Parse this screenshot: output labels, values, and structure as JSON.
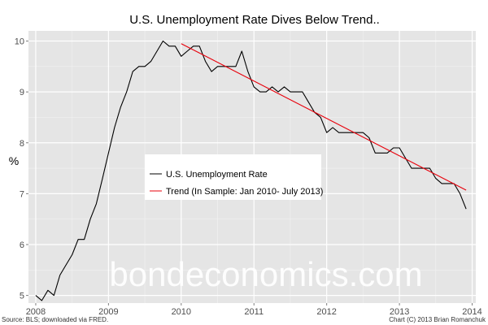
{
  "chart_data": {
    "type": "line",
    "title": "U.S. Unemployment Rate Dives Below Trend..",
    "xlabel": "",
    "ylabel": "%",
    "xlim": [
      2007.9,
      2014.05
    ],
    "ylim": [
      4.85,
      10.2
    ],
    "x_ticks": [
      2008,
      2009,
      2010,
      2011,
      2012,
      2013,
      2014
    ],
    "x_tick_labels": [
      "2008",
      "2009",
      "2010",
      "2011",
      "2012",
      "2013",
      "2014"
    ],
    "y_ticks": [
      5,
      6,
      7,
      8,
      9,
      10
    ],
    "y_tick_labels": [
      "5",
      "6",
      "7",
      "8",
      "9",
      "10"
    ],
    "grid": true,
    "legend_position": "center-left",
    "series": [
      {
        "name": "U.S. Unemployment Rate",
        "color": "#000000",
        "x": [
          2008.0,
          2008.083,
          2008.167,
          2008.25,
          2008.333,
          2008.417,
          2008.5,
          2008.583,
          2008.667,
          2008.75,
          2008.833,
          2008.917,
          2009.0,
          2009.083,
          2009.167,
          2009.25,
          2009.333,
          2009.417,
          2009.5,
          2009.583,
          2009.667,
          2009.75,
          2009.833,
          2009.917,
          2010.0,
          2010.083,
          2010.167,
          2010.25,
          2010.333,
          2010.417,
          2010.5,
          2010.583,
          2010.667,
          2010.75,
          2010.833,
          2010.917,
          2011.0,
          2011.083,
          2011.167,
          2011.25,
          2011.333,
          2011.417,
          2011.5,
          2011.583,
          2011.667,
          2011.75,
          2011.833,
          2011.917,
          2012.0,
          2012.083,
          2012.167,
          2012.25,
          2012.333,
          2012.417,
          2012.5,
          2012.583,
          2012.667,
          2012.75,
          2012.833,
          2012.917,
          2013.0,
          2013.083,
          2013.167,
          2013.25,
          2013.333,
          2013.417,
          2013.5,
          2013.583,
          2013.667,
          2013.75,
          2013.833,
          2013.917
        ],
        "values": [
          5.0,
          4.9,
          5.1,
          5.0,
          5.4,
          5.6,
          5.8,
          6.1,
          6.1,
          6.5,
          6.8,
          7.3,
          7.8,
          8.3,
          8.7,
          9.0,
          9.4,
          9.5,
          9.5,
          9.6,
          9.8,
          10.0,
          9.9,
          9.9,
          9.7,
          9.8,
          9.9,
          9.9,
          9.6,
          9.4,
          9.5,
          9.5,
          9.5,
          9.5,
          9.8,
          9.4,
          9.1,
          9.0,
          9.0,
          9.1,
          9.0,
          9.1,
          9.0,
          9.0,
          9.0,
          8.8,
          8.6,
          8.5,
          8.2,
          8.3,
          8.2,
          8.2,
          8.2,
          8.2,
          8.2,
          8.1,
          7.8,
          7.8,
          7.8,
          7.9,
          7.9,
          7.7,
          7.5,
          7.5,
          7.5,
          7.5,
          7.3,
          7.2,
          7.2,
          7.2,
          7.0,
          6.7
        ]
      },
      {
        "name": "Trend (In Sample: Jan 2010- July 2013)",
        "color": "#e8000b",
        "x": [
          2010.0,
          2013.917
        ],
        "values": [
          9.95,
          7.07
        ]
      }
    ],
    "annotations": {
      "watermark": "bondeconomics.com",
      "source": "Source: BLS; downloaded via FRED.",
      "credit": "Chart (C) 2013 Brian Romanchuk"
    }
  }
}
